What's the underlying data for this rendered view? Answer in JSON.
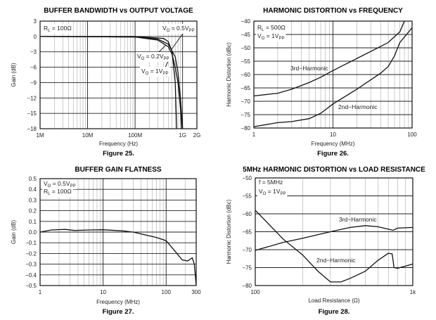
{
  "chart_data": [
    {
      "type": "line",
      "title": "BUFFER BANDWIDTH vs OUTPUT VOLTAGE",
      "caption": "Figure 25.",
      "xlabel": "Frequency (Hz)",
      "ylabel": "Gain (dB)",
      "xscale": "log",
      "xlim": [
        1000000,
        2000000000
      ],
      "ylim": [
        -18,
        3
      ],
      "yticks": [
        3,
        0,
        -3,
        -6,
        -9,
        -12,
        -15,
        -18
      ],
      "ytick_labels": [
        "3",
        "0",
        "−3",
        "−6",
        "−9",
        "−12",
        "−15",
        "−18"
      ],
      "xticks": [
        1000000,
        10000000,
        100000000,
        1000000000,
        2000000000
      ],
      "xtick_labels": [
        "1M",
        "10M",
        "100M",
        "1G",
        "2G"
      ],
      "grid": true,
      "annotations": [
        [
          {
            "t": "R"
          },
          {
            "t": "L",
            "sub": true
          },
          {
            "t": " = 100Ω"
          }
        ],
        [
          {
            "t": "V"
          },
          {
            "t": "O",
            "sub": true
          },
          {
            "t": " = 0.5V"
          },
          {
            "t": "PP",
            "sub": true
          }
        ],
        [
          {
            "t": "V"
          },
          {
            "t": "O",
            "sub": true
          },
          {
            "t": " = 0.2V"
          },
          {
            "t": "PP",
            "sub": true
          }
        ],
        [
          {
            "t": "V"
          },
          {
            "t": "O",
            "sub": true
          },
          {
            "t": " = 1V"
          },
          {
            "t": "PP",
            "sub": true
          }
        ]
      ],
      "series": [
        {
          "name": "VO = 0.2VPP",
          "x": [
            1000000,
            100000000,
            200000000,
            300000000,
            400000000,
            500000000,
            600000000,
            700000000,
            750000000
          ],
          "y": [
            0,
            0,
            -0.2,
            -0.3,
            -0.4,
            -1,
            -3,
            -9,
            -18
          ]
        },
        {
          "name": "VO = 0.5VPP",
          "x": [
            1000000,
            100000000,
            300000000,
            500000000,
            700000000,
            800000000,
            900000000,
            1000000000
          ],
          "y": [
            0,
            -0.1,
            -0.5,
            -1.5,
            -4,
            -7,
            -12,
            -18
          ]
        },
        {
          "name": "VO = 1VPP",
          "x": [
            1000000,
            100000000,
            300000000,
            500000000,
            600000000,
            700000000,
            800000000,
            900000000,
            950000000
          ],
          "y": [
            0,
            -0.1,
            -0.7,
            -2,
            -3.5,
            -6,
            -9,
            -14,
            -18
          ]
        }
      ]
    },
    {
      "type": "line",
      "title": "HARMONIC DISTORTION vs FREQUENCY",
      "caption": "Figure 26.",
      "xlabel": "Frequency (MHz)",
      "ylabel": "Harmonic Distortion (dBc)",
      "xscale": "log",
      "xlim": [
        1,
        100
      ],
      "ylim": [
        -80,
        -40
      ],
      "yticks": [
        -40,
        -45,
        -50,
        -55,
        -60,
        -65,
        -70,
        -75,
        -80
      ],
      "ytick_labels": [
        "−40",
        "−45",
        "−50",
        "−55",
        "−60",
        "−65",
        "−70",
        "−75",
        "−80"
      ],
      "xticks": [
        1,
        10,
        100
      ],
      "xtick_labels": [
        "1",
        "10",
        "100"
      ],
      "grid": true,
      "annotations": [
        [
          {
            "t": "R"
          },
          {
            "t": "L",
            "sub": true
          },
          {
            "t": " = 500Ω"
          }
        ],
        [
          {
            "t": "V"
          },
          {
            "t": "O",
            "sub": true
          },
          {
            "t": " = 1V"
          },
          {
            "t": "PP",
            "sub": true
          }
        ],
        [
          {
            "t": "3rd−Harmonic"
          }
        ],
        [
          {
            "t": "2nd−Harmonic"
          }
        ]
      ],
      "series": [
        {
          "name": "3rd-Harmonic",
          "x": [
            1,
            2,
            3,
            5,
            7,
            10,
            20,
            40,
            50,
            70,
            80
          ],
          "y": [
            -68,
            -67,
            -65.5,
            -63,
            -61,
            -58.5,
            -54,
            -49.5,
            -48,
            -44,
            -40
          ]
        },
        {
          "name": "2nd-Harmonic",
          "x": [
            1,
            2,
            3,
            5,
            7,
            10,
            20,
            40,
            50,
            60,
            70,
            100
          ],
          "y": [
            -79.5,
            -78,
            -77.6,
            -76.5,
            -74.5,
            -71,
            -65.5,
            -59.5,
            -57,
            -53,
            -48,
            -42.5
          ]
        }
      ]
    },
    {
      "type": "line",
      "title": "BUFFER GAIN FLATNESS",
      "caption": "Figure 27.",
      "xlabel": "Frequency (MHz)",
      "ylabel": "Gain (dB)",
      "xscale": "log",
      "xlim": [
        1,
        300
      ],
      "ylim": [
        -0.5,
        0.5
      ],
      "yticks": [
        0.5,
        0.4,
        0.3,
        0.2,
        0.1,
        0,
        -0.1,
        -0.2,
        -0.3,
        -0.4,
        -0.5
      ],
      "ytick_labels": [
        "0.5",
        "0.4",
        "0.3",
        "0.2",
        "0.1",
        "0.0",
        "−0.1",
        "−0.2",
        "−0.3",
        "−0.4",
        "−0.5"
      ],
      "xticks": [
        1,
        10,
        100,
        300
      ],
      "xtick_labels": [
        "1",
        "10",
        "100",
        "300"
      ],
      "grid": true,
      "annotations": [
        [
          {
            "t": "V"
          },
          {
            "t": "O",
            "sub": true
          },
          {
            "t": " = 0.5V"
          },
          {
            "t": "PP",
            "sub": true
          }
        ],
        [
          {
            "t": "R"
          },
          {
            "t": "L",
            "sub": true
          },
          {
            "t": " = 100Ω"
          }
        ]
      ],
      "series": [
        {
          "name": "Gain",
          "x": [
            1,
            1.5,
            2.5,
            3.5,
            6,
            10,
            20,
            30,
            50,
            70,
            100,
            130,
            180,
            220,
            260,
            280,
            300
          ],
          "y": [
            0,
            0.02,
            0.025,
            0.015,
            0.02,
            0.022,
            0.012,
            0,
            -0.03,
            -0.05,
            -0.08,
            -0.16,
            -0.26,
            -0.27,
            -0.24,
            -0.3,
            -0.5
          ]
        }
      ]
    },
    {
      "type": "line",
      "title": "5MHz HARMONIC DISTORTION vs LOAD RESISTANCE",
      "caption": "Figure 28.",
      "xlabel": "Load Resistance (Ω)",
      "ylabel": "Harmonic Distortion (dBc)",
      "xscale": "log",
      "xlim": [
        100,
        1000
      ],
      "ylim": [
        -80,
        -50
      ],
      "yticks": [
        -50,
        -55,
        -60,
        -65,
        -70,
        -75,
        -80
      ],
      "ytick_labels": [
        "−50",
        "−55",
        "−60",
        "−65",
        "−70",
        "−75",
        "−80"
      ],
      "xticks": [
        100,
        1000
      ],
      "xtick_labels": [
        "100",
        "1k"
      ],
      "grid": true,
      "annotations": [
        [
          {
            "t": "f = 5MHz"
          }
        ],
        [
          {
            "t": "V"
          },
          {
            "t": "O",
            "sub": true
          },
          {
            "t": " = 1V"
          },
          {
            "t": "PP",
            "sub": true
          }
        ],
        [
          {
            "t": "3rd−Harmonic"
          }
        ],
        [
          {
            "t": "2nd−Harmonic"
          }
        ]
      ],
      "series": [
        {
          "name": "3rd-Harmonic",
          "x": [
            100,
            150,
            200,
            300,
            400,
            500,
            600,
            700,
            750,
            800,
            1000
          ],
          "y": [
            -70.2,
            -68,
            -66.8,
            -65,
            -63.8,
            -63.3,
            -63.6,
            -64.3,
            -64.6,
            -64,
            -63.8
          ]
        },
        {
          "name": "2nd-Harmonic",
          "x": [
            100,
            150,
            200,
            250,
            300,
            350,
            400,
            500,
            600,
            700,
            740,
            760,
            800,
            1000
          ],
          "y": [
            -59,
            -67,
            -71.5,
            -76,
            -79,
            -79,
            -78,
            -76,
            -73,
            -71,
            -71.2,
            -75,
            -75.2,
            -74
          ]
        }
      ]
    }
  ]
}
